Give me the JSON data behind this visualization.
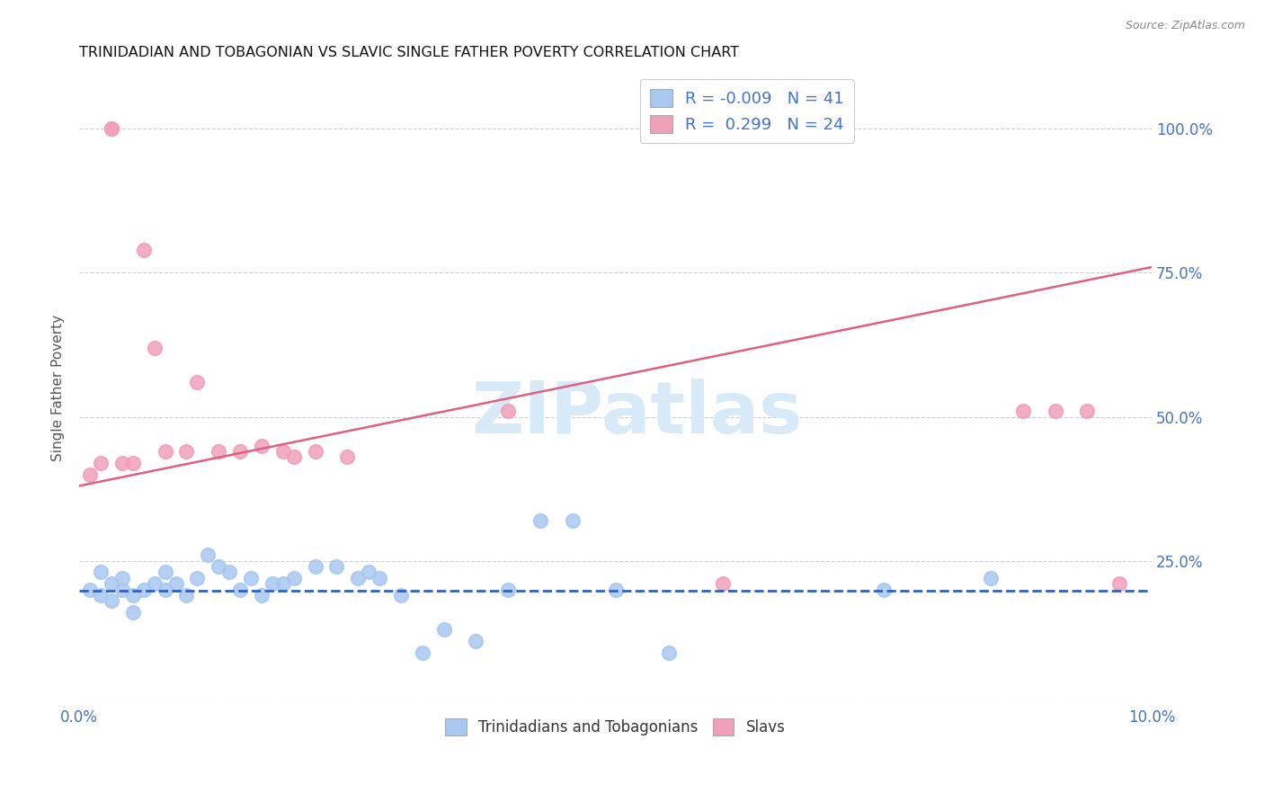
{
  "title": "TRINIDADIAN AND TOBAGONIAN VS SLAVIC SINGLE FATHER POVERTY CORRELATION CHART",
  "source": "Source: ZipAtlas.com",
  "ylabel": "Single Father Poverty",
  "legend_bottom": [
    "Trinidadians and Tobagonians",
    "Slavs"
  ],
  "blue_scatter_x": [
    0.001,
    0.002,
    0.002,
    0.003,
    0.003,
    0.004,
    0.004,
    0.005,
    0.005,
    0.006,
    0.007,
    0.008,
    0.008,
    0.009,
    0.01,
    0.011,
    0.012,
    0.013,
    0.014,
    0.015,
    0.016,
    0.017,
    0.018,
    0.019,
    0.02,
    0.022,
    0.024,
    0.026,
    0.027,
    0.028,
    0.03,
    0.032,
    0.034,
    0.037,
    0.04,
    0.043,
    0.046,
    0.05,
    0.055,
    0.075,
    0.085
  ],
  "blue_scatter_y": [
    0.2,
    0.19,
    0.23,
    0.21,
    0.18,
    0.2,
    0.22,
    0.19,
    0.16,
    0.2,
    0.21,
    0.2,
    0.23,
    0.21,
    0.19,
    0.22,
    0.26,
    0.24,
    0.23,
    0.2,
    0.22,
    0.19,
    0.21,
    0.21,
    0.22,
    0.24,
    0.24,
    0.22,
    0.23,
    0.22,
    0.19,
    0.09,
    0.13,
    0.11,
    0.2,
    0.32,
    0.32,
    0.2,
    0.09,
    0.2,
    0.22
  ],
  "pink_scatter_x": [
    0.001,
    0.002,
    0.003,
    0.003,
    0.004,
    0.005,
    0.006,
    0.007,
    0.008,
    0.01,
    0.011,
    0.013,
    0.015,
    0.017,
    0.019,
    0.02,
    0.022,
    0.025,
    0.04,
    0.06,
    0.088,
    0.091,
    0.094,
    0.097
  ],
  "pink_scatter_y": [
    0.4,
    0.42,
    1.0,
    1.0,
    0.42,
    0.42,
    0.79,
    0.62,
    0.44,
    0.44,
    0.56,
    0.44,
    0.44,
    0.45,
    0.44,
    0.43,
    0.44,
    0.43,
    0.51,
    0.21,
    0.51,
    0.51,
    0.51,
    0.21
  ],
  "blue_line_x": [
    0.0,
    0.1
  ],
  "blue_line_y": [
    0.198,
    0.198
  ],
  "pink_line_x": [
    0.0,
    0.1
  ],
  "pink_line_y": [
    0.38,
    0.76
  ],
  "xlim": [
    0.0,
    0.1
  ],
  "ylim": [
    0.0,
    1.1
  ],
  "ytick_positions": [
    0.0,
    0.25,
    0.5,
    0.75,
    1.0
  ],
  "ytick_labels": [
    "",
    "25.0%",
    "50.0%",
    "75.0%",
    "100.0%"
  ],
  "xtick_positions": [
    0.0,
    0.1
  ],
  "xtick_labels": [
    "0.0%",
    "10.0%"
  ],
  "background_color": "#ffffff",
  "grid_color": "#cccccc",
  "blue_color": "#a8c8f0",
  "pink_color": "#f0a0b8",
  "blue_line_color": "#3060c0",
  "pink_line_color": "#e06080",
  "title_color": "#111111",
  "axis_tick_color": "#4472c4",
  "source_color": "#888888",
  "ylabel_color": "#555555",
  "watermark_text": "ZIPatlas",
  "watermark_color": "#d8eaf8",
  "legend_R_blue": "R = -0.009",
  "legend_N_blue": "N = 41",
  "legend_R_pink": "R =  0.299",
  "legend_N_pink": "N = 24"
}
